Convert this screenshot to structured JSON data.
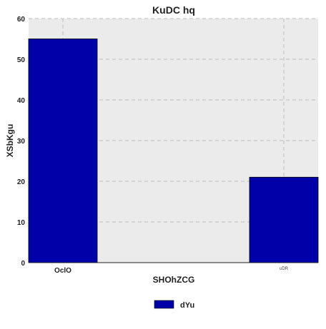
{
  "chart_data": {
    "type": "bar",
    "title": "KuDC hq",
    "xlabel": "SHOhZCG",
    "ylabel": "XSbKgu",
    "categories": [
      "OclO",
      "uDR"
    ],
    "series": [
      {
        "name": "dYu",
        "values": [
          55,
          21
        ],
        "color": "#0000a8"
      }
    ],
    "ylim": [
      0,
      60
    ],
    "yticks": [
      0,
      10,
      20,
      30,
      40,
      50,
      60
    ],
    "grid": true,
    "legend_position": "bottom-center",
    "background_color": "#ebebeb"
  }
}
